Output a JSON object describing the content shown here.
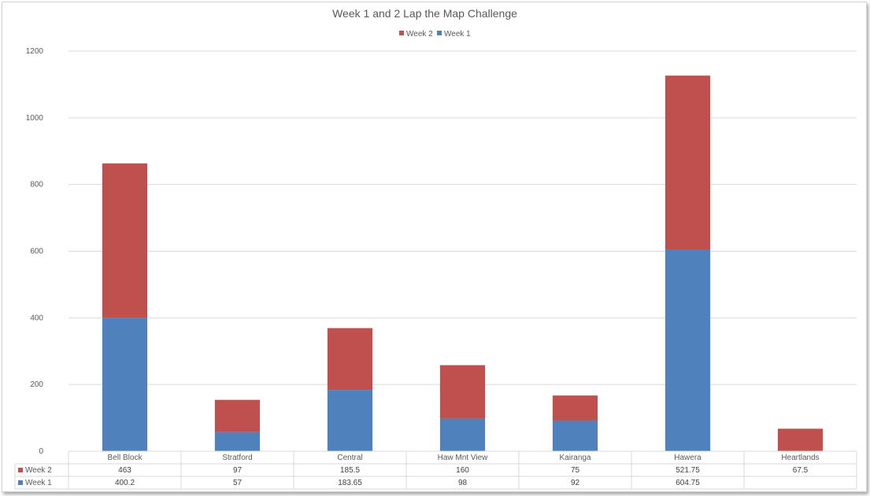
{
  "chart_data": {
    "type": "bar",
    "stacked": true,
    "title": "Week 1 and 2 Lap the Map Challenge",
    "categories": [
      "Bell Block",
      "Stratford",
      "Central",
      "Haw Mnt View",
      "Kairanga",
      "Hawera",
      "Heartlands"
    ],
    "series": [
      {
        "name": "Week 1",
        "color": "#4f81bd",
        "values": [
          400.2,
          57,
          183.65,
          98,
          92,
          604.75,
          null
        ],
        "labels": [
          "400.2",
          "57",
          "183.65",
          "98",
          "92",
          "604.75",
          ""
        ]
      },
      {
        "name": "Week 2",
        "color": "#c0504d",
        "values": [
          463,
          97,
          185.5,
          160,
          75,
          521.75,
          67.5
        ],
        "labels": [
          "463",
          "97",
          "185.5",
          "160",
          "75",
          "521.75",
          "67.5"
        ]
      }
    ],
    "legend_order": [
      "Week 2",
      "Week 1"
    ],
    "legend_position": "top",
    "ylim": [
      0,
      1200
    ],
    "yticks": [
      "0",
      "200",
      "400",
      "600",
      "800",
      "1000",
      "1200"
    ],
    "grid": true,
    "data_table": true
  }
}
